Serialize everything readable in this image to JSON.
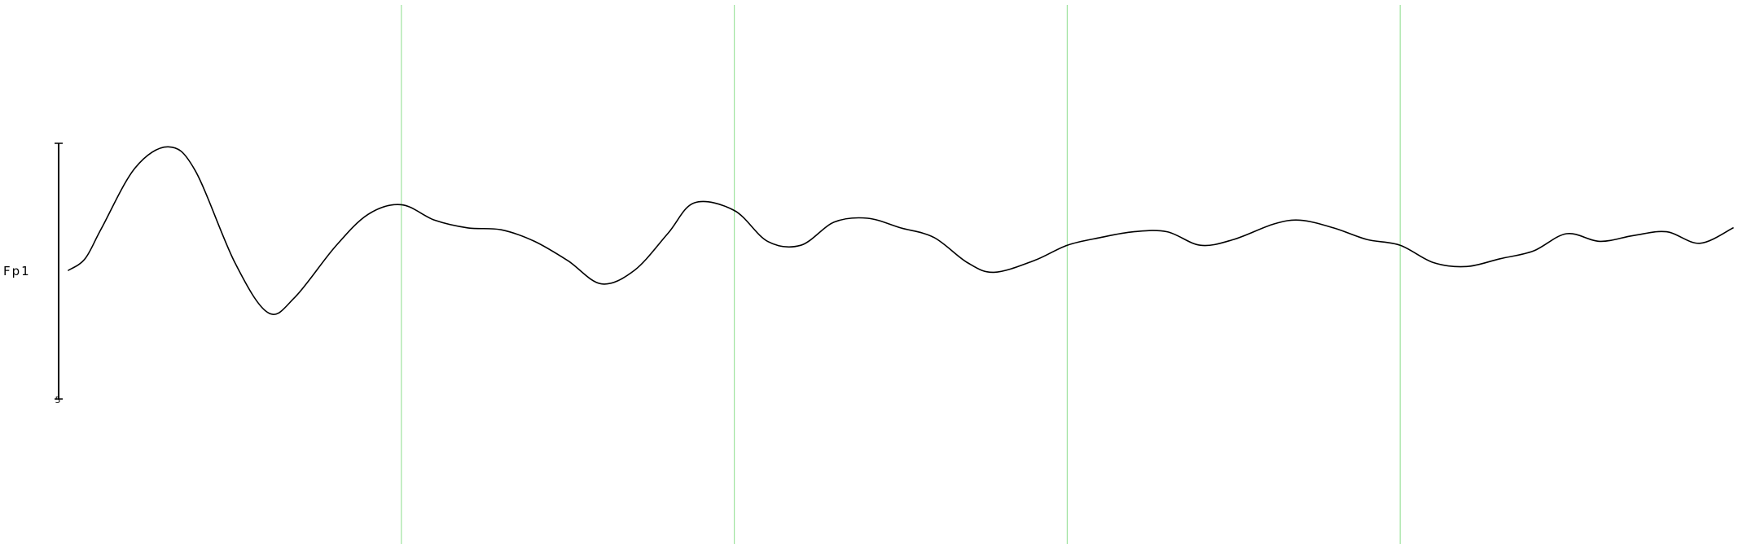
{
  "chart_data": {
    "type": "line",
    "title": "",
    "xlabel": "",
    "ylabel": "",
    "channels": [
      {
        "label": "Fp1"
      }
    ],
    "scale_bar": {
      "label": "5"
    },
    "grid": true,
    "epoch_markers": [
      1,
      2,
      3,
      4
    ],
    "xlim": [
      0,
      5
    ],
    "ylim": [
      -1,
      1
    ],
    "x": [
      0,
      0.05,
      0.1,
      0.2,
      0.3,
      0.38,
      0.5,
      0.6,
      0.68,
      0.8,
      0.9,
      1.0,
      1.1,
      1.2,
      1.3,
      1.4,
      1.5,
      1.6,
      1.7,
      1.8,
      1.88,
      2.0,
      2.1,
      2.2,
      2.3,
      2.4,
      2.5,
      2.6,
      2.7,
      2.78,
      2.9,
      3.0,
      3.1,
      3.2,
      3.3,
      3.4,
      3.5,
      3.62,
      3.7,
      3.8,
      3.9,
      4.0,
      4.1,
      4.2,
      4.3,
      4.4,
      4.5,
      4.6,
      4.7,
      4.8,
      4.9,
      5.0
    ],
    "series": [
      {
        "values": [
          0.0,
          0.06,
          0.22,
          0.53,
          0.64,
          0.52,
          0.04,
          -0.22,
          -0.14,
          0.12,
          0.29,
          0.34,
          0.26,
          0.22,
          0.21,
          0.15,
          0.05,
          -0.07,
          0.0,
          0.19,
          0.35,
          0.31,
          0.15,
          0.13,
          0.25,
          0.27,
          0.22,
          0.17,
          0.04,
          -0.01,
          0.05,
          0.13,
          0.17,
          0.2,
          0.2,
          0.13,
          0.16,
          0.24,
          0.26,
          0.22,
          0.16,
          0.13,
          0.04,
          0.02,
          0.06,
          0.1,
          0.19,
          0.15,
          0.18,
          0.2,
          0.14,
          0.22
        ]
      }
    ],
    "colors": {
      "signal": "#000000",
      "grid": "#9fe39f",
      "scale_bar": "#000000",
      "background": "#ffffff"
    }
  }
}
